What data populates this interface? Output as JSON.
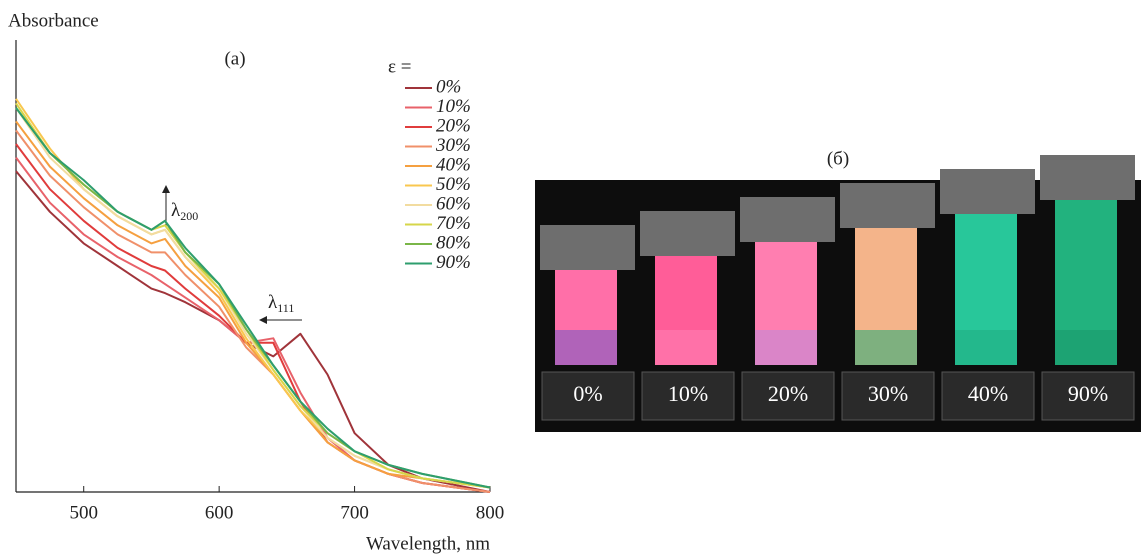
{
  "chart_data": {
    "type": "line",
    "y_label": "Absorbance",
    "x_label": "Wavelength, nm",
    "panel_label": "(a)",
    "xlim": [
      450,
      800
    ],
    "xticks": [
      500,
      600,
      700,
      800
    ],
    "ylim": [
      0,
      1
    ],
    "x": [
      450,
      475,
      500,
      525,
      550,
      560,
      575,
      600,
      620,
      640,
      660,
      680,
      700,
      725,
      750,
      800
    ],
    "legend_title": "ε =",
    "legend": "upper right",
    "series": [
      {
        "name": "0%",
        "color": "#a0343a",
        "values": [
          0.71,
          0.62,
          0.55,
          0.5,
          0.45,
          0.44,
          0.42,
          0.38,
          0.33,
          0.3,
          0.35,
          0.26,
          0.13,
          0.06,
          0.03,
          0.0
        ]
      },
      {
        "name": "10%",
        "color": "#e8626a",
        "values": [
          0.74,
          0.64,
          0.57,
          0.52,
          0.48,
          0.46,
          0.43,
          0.38,
          0.33,
          0.34,
          0.22,
          0.12,
          0.07,
          0.04,
          0.02,
          0.0
        ]
      },
      {
        "name": "20%",
        "color": "#e03c3c",
        "values": [
          0.77,
          0.67,
          0.6,
          0.54,
          0.5,
          0.49,
          0.45,
          0.39,
          0.33,
          0.33,
          0.2,
          0.11,
          0.07,
          0.04,
          0.02,
          0.0
        ]
      },
      {
        "name": "30%",
        "color": "#f0906a",
        "values": [
          0.8,
          0.7,
          0.63,
          0.57,
          0.53,
          0.53,
          0.48,
          0.41,
          0.32,
          0.26,
          0.18,
          0.11,
          0.07,
          0.04,
          0.02,
          0.0
        ]
      },
      {
        "name": "40%",
        "color": "#f5a040",
        "values": [
          0.82,
          0.72,
          0.65,
          0.59,
          0.55,
          0.56,
          0.5,
          0.43,
          0.33,
          0.26,
          0.18,
          0.11,
          0.07,
          0.04,
          0.03,
          0.01
        ]
      },
      {
        "name": "50%",
        "color": "#f9c74f",
        "values": [
          0.87,
          0.76,
          0.67,
          0.61,
          0.57,
          0.58,
          0.52,
          0.44,
          0.34,
          0.26,
          0.18,
          0.12,
          0.08,
          0.05,
          0.03,
          0.01
        ]
      },
      {
        "name": "60%",
        "color": "#f2dca0",
        "values": [
          0.85,
          0.74,
          0.67,
          0.61,
          0.57,
          0.58,
          0.52,
          0.45,
          0.35,
          0.27,
          0.19,
          0.12,
          0.08,
          0.05,
          0.03,
          0.01
        ]
      },
      {
        "name": "70%",
        "color": "#d6d64a",
        "values": [
          0.86,
          0.75,
          0.68,
          0.62,
          0.58,
          0.59,
          0.53,
          0.45,
          0.36,
          0.27,
          0.19,
          0.13,
          0.09,
          0.05,
          0.03,
          0.01
        ]
      },
      {
        "name": "80%",
        "color": "#7ab648",
        "values": [
          0.85,
          0.75,
          0.68,
          0.62,
          0.58,
          0.6,
          0.53,
          0.46,
          0.36,
          0.28,
          0.2,
          0.13,
          0.09,
          0.06,
          0.04,
          0.01
        ]
      },
      {
        "name": "90%",
        "color": "#2e9e6e",
        "values": [
          0.85,
          0.75,
          0.69,
          0.62,
          0.58,
          0.6,
          0.54,
          0.46,
          0.37,
          0.28,
          0.2,
          0.14,
          0.09,
          0.06,
          0.04,
          0.01
        ]
      }
    ],
    "annotations": [
      {
        "symbol": "λ",
        "sub": "200"
      },
      {
        "symbol": "λ",
        "sub": "111"
      }
    ]
  },
  "photo": {
    "label": "(б)",
    "samples": [
      "0%",
      "10%",
      "20%",
      "30%",
      "40%",
      "90%"
    ]
  }
}
